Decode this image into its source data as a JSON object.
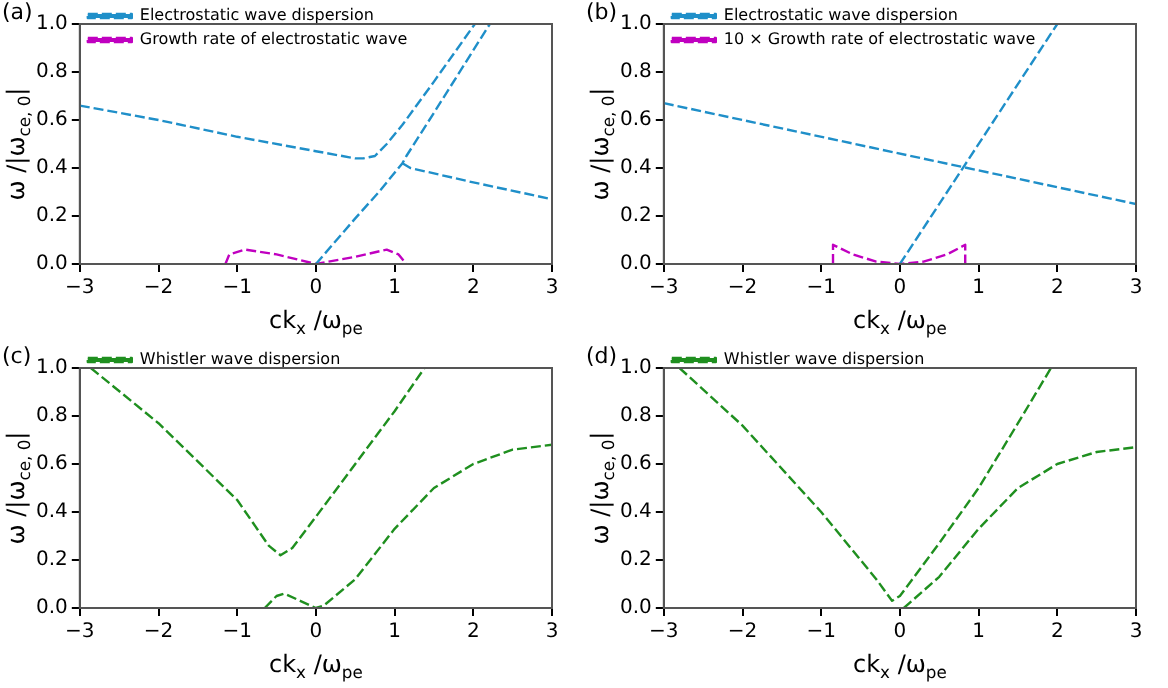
{
  "chart_data": [
    {
      "type": "line",
      "title": "(a)",
      "xlabel": "ck$_{x}$ /ω$_{pe}$",
      "ylabel": "ω /|ω$_{ce, 0}$|",
      "xlim": [
        -3,
        3
      ],
      "ylim": [
        0,
        1
      ],
      "xticks": [
        {
          "value": -3,
          "label": "−3"
        },
        {
          "value": -2,
          "label": "−2"
        },
        {
          "value": -1,
          "label": "−1"
        },
        0,
        1,
        2,
        3
      ],
      "yticks": [
        {
          "value": 0,
          "label": "0.0"
        },
        {
          "value": 0.2,
          "label": "0.2"
        },
        {
          "value": 0.4,
          "label": "0.4"
        },
        {
          "value": 0.6,
          "label": "0.6"
        },
        {
          "value": 0.8,
          "label": "0.8"
        },
        {
          "value": 1,
          "label": "1.0"
        }
      ],
      "legend": "top left",
      "line_style": "dashed",
      "grid": false,
      "series": [
        {
          "name": "Electrostatic wave dispersion",
          "color": "#1f8fc9",
          "x": [
            -3,
            -2,
            -1,
            0,
            0.5,
            0.6,
            0.75,
            0.9,
            1.1,
            1.5,
            2.02
          ],
          "values": [
            0.66,
            0.6,
            0.53,
            0.47,
            0.44,
            0.44,
            0.45,
            0.5,
            0.58,
            0.76,
            1.0
          ]
        },
        {
          "color": "#1f8fc9",
          "x": [
            0,
            0.5,
            0.8,
            1.0,
            1.1,
            1.15,
            1.5,
            2.21
          ],
          "values": [
            0,
            0.19,
            0.3,
            0.38,
            0.42,
            0.45,
            0.63,
            1.0
          ]
        },
        {
          "color": "#1f8fc9",
          "x": [
            1.1,
            1.2,
            2,
            3
          ],
          "values": [
            0.42,
            0.4,
            0.34,
            0.27
          ]
        },
        {
          "name": "Growth rate of electrostatic wave",
          "color": "#c000c0",
          "x": [
            -1.15,
            -1.1,
            -0.9,
            -0.5,
            0,
            0.5,
            0.9,
            1.05,
            1.15
          ],
          "values": [
            0,
            0.04,
            0.06,
            0.04,
            0,
            0.03,
            0.06,
            0.04,
            0
          ]
        }
      ]
    },
    {
      "type": "line",
      "title": "(b)",
      "xlabel": "ck$_{x}$ /ω$_{pe}$",
      "ylabel": "ω /|ω$_{ce, 0}$|",
      "xlim": [
        -3,
        3
      ],
      "ylim": [
        0,
        1
      ],
      "xticks": [
        {
          "value": -3,
          "label": "−3"
        },
        {
          "value": -2,
          "label": "−2"
        },
        {
          "value": -1,
          "label": "−1"
        },
        0,
        1,
        2,
        3
      ],
      "yticks": [
        {
          "value": 0,
          "label": "0.0"
        },
        {
          "value": 0.2,
          "label": "0.2"
        },
        {
          "value": 0.4,
          "label": "0.4"
        },
        {
          "value": 0.6,
          "label": "0.6"
        },
        {
          "value": 0.8,
          "label": "0.8"
        },
        {
          "value": 1,
          "label": "1.0"
        }
      ],
      "legend": "top left",
      "line_style": "dashed",
      "grid": false,
      "series": [
        {
          "name": "Electrostatic wave dispersion",
          "color": "#1f8fc9",
          "x": [
            -3,
            3
          ],
          "values": [
            0.67,
            0.25
          ]
        },
        {
          "color": "#1f8fc9",
          "x": [
            0,
            2.0
          ],
          "values": [
            0,
            1.0
          ]
        },
        {
          "name": "10 × Growth rate of electrostatic wave",
          "color": "#c000c0",
          "x": [
            -0.85,
            -0.85,
            -0.6,
            -0.3,
            0,
            0.3,
            0.6,
            0.83,
            0.83
          ],
          "values": [
            0,
            0.08,
            0.04,
            0.01,
            0,
            0.01,
            0.04,
            0.08,
            0
          ]
        }
      ]
    },
    {
      "type": "line",
      "title": "(c)",
      "xlabel": "ck$_{x}$ /ω$_{pe}$",
      "ylabel": "ω /|ω$_{ce, 0}$|",
      "xlim": [
        -3,
        3
      ],
      "ylim": [
        0,
        1
      ],
      "xticks": [
        {
          "value": -3,
          "label": "−3"
        },
        {
          "value": -2,
          "label": "−2"
        },
        {
          "value": -1,
          "label": "−1"
        },
        0,
        1,
        2,
        3
      ],
      "yticks": [
        {
          "value": 0,
          "label": "0.0"
        },
        {
          "value": 0.2,
          "label": "0.2"
        },
        {
          "value": 0.4,
          "label": "0.4"
        },
        {
          "value": 0.6,
          "label": "0.6"
        },
        {
          "value": 0.8,
          "label": "0.8"
        },
        {
          "value": 1,
          "label": "1.0"
        }
      ],
      "legend": "top left",
      "line_style": "dashed",
      "grid": false,
      "series": [
        {
          "name": "Whistler wave dispersion",
          "color": "#1f8f1f",
          "x": [
            -2.86,
            -2,
            -1,
            -0.6,
            -0.45,
            -0.3,
            0,
            0.5,
            1,
            1.38
          ],
          "values": [
            1,
            0.77,
            0.45,
            0.26,
            0.22,
            0.25,
            0.38,
            0.6,
            0.82,
            1
          ]
        },
        {
          "color": "#1f8f1f",
          "x": [
            -0.65,
            -0.5,
            -0.4,
            -0.2,
            0,
            0.1,
            0.5,
            1,
            1.5,
            2,
            2.5,
            3
          ],
          "values": [
            0,
            0.05,
            0.06,
            0.03,
            0,
            0.01,
            0.12,
            0.33,
            0.5,
            0.6,
            0.66,
            0.68
          ]
        }
      ]
    },
    {
      "type": "line",
      "title": "(d)",
      "xlabel": "ck$_{x}$ /ω$_{pe}$",
      "ylabel": "ω /|ω$_{ce, 0}$|",
      "xlim": [
        -3,
        3
      ],
      "ylim": [
        0,
        1
      ],
      "xticks": [
        {
          "value": -3,
          "label": "−3"
        },
        {
          "value": -2,
          "label": "−2"
        },
        {
          "value": -1,
          "label": "−1"
        },
        0,
        1,
        2,
        3
      ],
      "yticks": [
        {
          "value": 0,
          "label": "0.0"
        },
        {
          "value": 0.2,
          "label": "0.2"
        },
        {
          "value": 0.4,
          "label": "0.4"
        },
        {
          "value": 0.6,
          "label": "0.6"
        },
        {
          "value": 0.8,
          "label": "0.8"
        },
        {
          "value": 1,
          "label": "1.0"
        }
      ],
      "legend": "top left",
      "line_style": "dashed",
      "grid": false,
      "series": [
        {
          "name": "Whistler wave dispersion",
          "color": "#1f8f1f",
          "x": [
            -2.8,
            -2,
            -1,
            -0.3,
            -0.1,
            0,
            0.5,
            1,
            1.5,
            1.92
          ],
          "values": [
            1,
            0.76,
            0.4,
            0.12,
            0.03,
            0.05,
            0.27,
            0.5,
            0.77,
            1
          ]
        },
        {
          "color": "#1f8f1f",
          "x": [
            0.05,
            0.5,
            1,
            1.5,
            2,
            2.5,
            3
          ],
          "values": [
            0,
            0.13,
            0.33,
            0.5,
            0.6,
            0.65,
            0.67
          ]
        }
      ]
    }
  ]
}
